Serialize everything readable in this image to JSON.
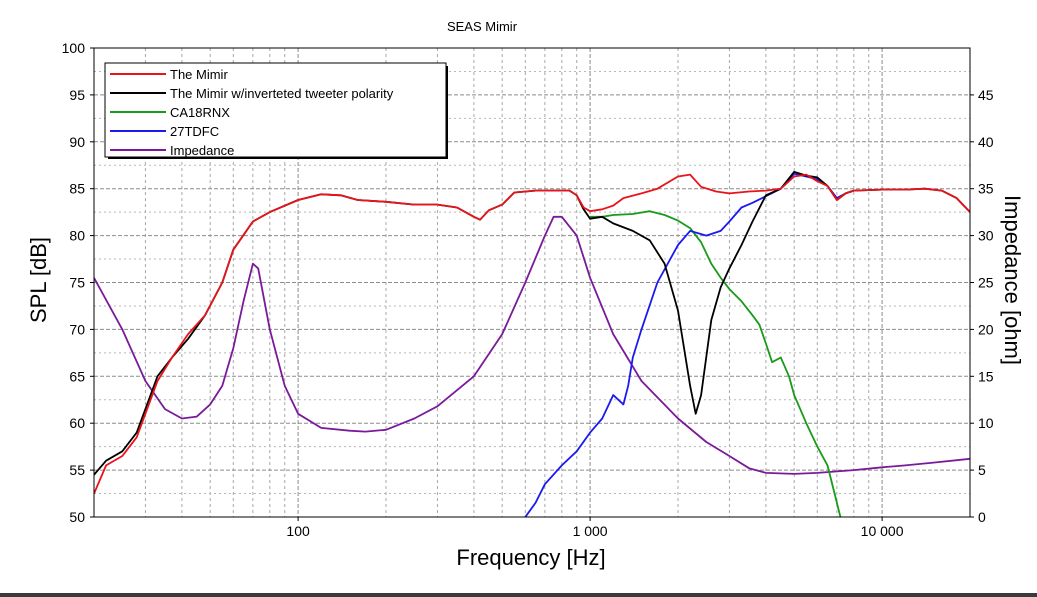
{
  "chart_data": {
    "type": "line",
    "title": "SEAS Mimir",
    "xlabel": "Frequency [Hz]",
    "ylabel": "SPL [dB]",
    "y2label": "Impedance [ohm]",
    "xscale": "log",
    "xlim": [
      20,
      20000
    ],
    "ylim": [
      50,
      100
    ],
    "y2lim": [
      0,
      50
    ],
    "x_tick_labels": [
      {
        "value": 100,
        "label": "100"
      },
      {
        "value": 1000,
        "label": "1 000"
      },
      {
        "value": 10000,
        "label": "10 000"
      }
    ],
    "y_ticks": [
      50,
      55,
      60,
      65,
      70,
      75,
      80,
      85,
      90,
      95,
      100
    ],
    "y2_ticks": [
      0,
      5,
      10,
      15,
      20,
      25,
      30,
      35,
      40,
      45
    ],
    "grid": true,
    "legend_position": "top-left",
    "series": [
      {
        "name": "The Mimir",
        "axis": "left",
        "color": "#e8141b",
        "points": [
          [
            20,
            52.5
          ],
          [
            22,
            55.5
          ],
          [
            25,
            56.5
          ],
          [
            28,
            58.5
          ],
          [
            30,
            61
          ],
          [
            33,
            64.5
          ],
          [
            37,
            67
          ],
          [
            42,
            69.5
          ],
          [
            48,
            71.5
          ],
          [
            55,
            75
          ],
          [
            60,
            78.5
          ],
          [
            70,
            81.5
          ],
          [
            80,
            82.5
          ],
          [
            100,
            83.8
          ],
          [
            120,
            84.4
          ],
          [
            140,
            84.3
          ],
          [
            160,
            83.8
          ],
          [
            200,
            83.6
          ],
          [
            250,
            83.3
          ],
          [
            300,
            83.3
          ],
          [
            350,
            83
          ],
          [
            400,
            82
          ],
          [
            420,
            81.7
          ],
          [
            450,
            82.7
          ],
          [
            500,
            83.3
          ],
          [
            550,
            84.6
          ],
          [
            650,
            84.8
          ],
          [
            750,
            84.8
          ],
          [
            850,
            84.8
          ],
          [
            900,
            84.3
          ],
          [
            950,
            83
          ],
          [
            1000,
            82.6
          ],
          [
            1100,
            82.8
          ],
          [
            1200,
            83.2
          ],
          [
            1300,
            84
          ],
          [
            1500,
            84.5
          ],
          [
            1700,
            85
          ],
          [
            2000,
            86.3
          ],
          [
            2200,
            86.5
          ],
          [
            2400,
            85.2
          ],
          [
            2700,
            84.7
          ],
          [
            3000,
            84.5
          ],
          [
            3500,
            84.7
          ],
          [
            4000,
            84.8
          ],
          [
            4500,
            85
          ],
          [
            5000,
            86.3
          ],
          [
            5500,
            86.5
          ],
          [
            6000,
            85.8
          ],
          [
            6500,
            85.3
          ],
          [
            7000,
            83.8
          ],
          [
            7500,
            84.5
          ],
          [
            8000,
            84.8
          ],
          [
            10000,
            84.9
          ],
          [
            12000,
            84.9
          ],
          [
            14000,
            85
          ],
          [
            16000,
            84.8
          ],
          [
            18000,
            84
          ],
          [
            20000,
            82.5
          ]
        ]
      },
      {
        "name": "The Mimir w/inverteted tweeter polarity",
        "axis": "left",
        "color": "#000000",
        "points": [
          [
            20,
            54.5
          ],
          [
            22,
            56
          ],
          [
            25,
            57
          ],
          [
            28,
            59
          ],
          [
            30,
            61.5
          ],
          [
            33,
            65
          ],
          [
            37,
            67
          ],
          [
            42,
            69
          ],
          [
            48,
            71.5
          ],
          [
            55,
            75
          ],
          [
            60,
            78.5
          ],
          [
            70,
            81.5
          ],
          [
            80,
            82.5
          ],
          [
            100,
            83.8
          ],
          [
            120,
            84.4
          ],
          [
            140,
            84.3
          ],
          [
            160,
            83.8
          ],
          [
            200,
            83.6
          ],
          [
            250,
            83.3
          ],
          [
            300,
            83.3
          ],
          [
            350,
            83
          ],
          [
            400,
            82
          ],
          [
            420,
            81.7
          ],
          [
            450,
            82.7
          ],
          [
            500,
            83.3
          ],
          [
            550,
            84.6
          ],
          [
            650,
            84.8
          ],
          [
            750,
            84.8
          ],
          [
            850,
            84.8
          ],
          [
            900,
            84.3
          ],
          [
            950,
            82.8
          ],
          [
            1000,
            81.8
          ],
          [
            1100,
            82
          ],
          [
            1200,
            81.3
          ],
          [
            1400,
            80.5
          ],
          [
            1600,
            79.5
          ],
          [
            1800,
            77
          ],
          [
            2000,
            72
          ],
          [
            2200,
            64
          ],
          [
            2300,
            61
          ],
          [
            2400,
            63
          ],
          [
            2600,
            71
          ],
          [
            2800,
            74.5
          ],
          [
            3000,
            76.5
          ],
          [
            3300,
            79
          ],
          [
            3600,
            81.5
          ],
          [
            4000,
            84.3
          ],
          [
            4500,
            85
          ],
          [
            5000,
            86.8
          ],
          [
            5500,
            86.4
          ],
          [
            6000,
            86.2
          ],
          [
            6500,
            85.3
          ],
          [
            7000,
            83.8
          ],
          [
            7500,
            84.5
          ],
          [
            8000,
            84.8
          ],
          [
            10000,
            84.9
          ],
          [
            12000,
            84.9
          ],
          [
            14000,
            85
          ],
          [
            16000,
            84.8
          ],
          [
            18000,
            84
          ],
          [
            20000,
            82.5
          ]
        ]
      },
      {
        "name": "CA18RNX",
        "axis": "left",
        "color": "#199a19",
        "points": [
          [
            1000,
            82
          ],
          [
            1100,
            82
          ],
          [
            1200,
            82.2
          ],
          [
            1400,
            82.3
          ],
          [
            1600,
            82.6
          ],
          [
            1800,
            82.2
          ],
          [
            2000,
            81.6
          ],
          [
            2200,
            80.8
          ],
          [
            2400,
            79.3
          ],
          [
            2600,
            77
          ],
          [
            2800,
            75.5
          ],
          [
            3000,
            74.3
          ],
          [
            3300,
            73
          ],
          [
            3600,
            71.5
          ],
          [
            3800,
            70.5
          ],
          [
            4000,
            68.5
          ],
          [
            4200,
            66.5
          ],
          [
            4500,
            67
          ],
          [
            4800,
            65
          ],
          [
            5000,
            63
          ],
          [
            5500,
            60
          ],
          [
            6000,
            57.5
          ],
          [
            6500,
            55.5
          ],
          [
            7000,
            51.5
          ],
          [
            7200,
            50
          ]
        ]
      },
      {
        "name": "27TDFC",
        "axis": "left",
        "color": "#1a1af0",
        "points": [
          [
            600,
            50
          ],
          [
            650,
            51.5
          ],
          [
            700,
            53.5
          ],
          [
            800,
            55.5
          ],
          [
            900,
            57
          ],
          [
            1000,
            59
          ],
          [
            1100,
            60.5
          ],
          [
            1200,
            63
          ],
          [
            1300,
            62
          ],
          [
            1350,
            64
          ],
          [
            1400,
            67
          ],
          [
            1500,
            70
          ],
          [
            1700,
            75
          ],
          [
            2000,
            79
          ],
          [
            2200,
            80.5
          ],
          [
            2500,
            80
          ],
          [
            2800,
            80.5
          ],
          [
            3000,
            81.5
          ],
          [
            3300,
            83
          ],
          [
            3600,
            83.5
          ],
          [
            4000,
            84.2
          ],
          [
            4500,
            85
          ],
          [
            5000,
            86.6
          ],
          [
            5500,
            86.3
          ],
          [
            6000,
            86
          ],
          [
            6500,
            85.3
          ],
          [
            7000,
            84
          ],
          [
            7500,
            84.5
          ],
          [
            8000,
            84.8
          ]
        ]
      },
      {
        "name": "Impedance",
        "axis": "right",
        "color": "#7a1a9a",
        "points": [
          [
            20,
            25.5
          ],
          [
            25,
            20
          ],
          [
            30,
            14.5
          ],
          [
            35,
            11.5
          ],
          [
            40,
            10.5
          ],
          [
            45,
            10.7
          ],
          [
            50,
            12
          ],
          [
            55,
            14
          ],
          [
            60,
            18
          ],
          [
            65,
            23
          ],
          [
            70,
            27
          ],
          [
            73,
            26.5
          ],
          [
            80,
            20
          ],
          [
            90,
            14
          ],
          [
            100,
            11
          ],
          [
            120,
            9.5
          ],
          [
            150,
            9.2
          ],
          [
            170,
            9.1
          ],
          [
            200,
            9.3
          ],
          [
            250,
            10.5
          ],
          [
            300,
            11.8
          ],
          [
            400,
            15
          ],
          [
            500,
            19.5
          ],
          [
            600,
            25
          ],
          [
            700,
            30
          ],
          [
            750,
            32
          ],
          [
            800,
            32
          ],
          [
            900,
            30
          ],
          [
            1000,
            25.5
          ],
          [
            1200,
            19.5
          ],
          [
            1500,
            14.5
          ],
          [
            2000,
            10.5
          ],
          [
            2500,
            8
          ],
          [
            3000,
            6.5
          ],
          [
            3500,
            5.2
          ],
          [
            4000,
            4.7
          ],
          [
            5000,
            4.6
          ],
          [
            6000,
            4.7
          ],
          [
            8000,
            5
          ],
          [
            10000,
            5.3
          ],
          [
            12000,
            5.5
          ],
          [
            15000,
            5.8
          ],
          [
            20000,
            6.2
          ]
        ]
      }
    ]
  }
}
